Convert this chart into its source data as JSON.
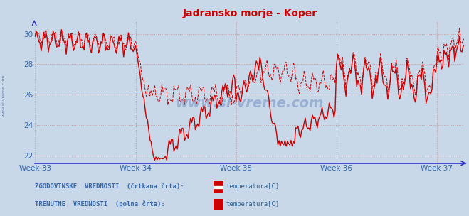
{
  "title": "Jadransko morje - Koper",
  "title_color": "#cc0000",
  "background_color": "#c8d8e8",
  "plot_bg_color": "#c8d8e8",
  "outer_bg_color": "#c8d8e8",
  "x_labels": [
    "Week 33",
    "Week 34",
    "Week 35",
    "Week 36",
    "Week 37"
  ],
  "x_ticks": [
    0,
    84,
    168,
    252,
    336
  ],
  "ylim": [
    21.5,
    30.8
  ],
  "yticks": [
    22,
    24,
    26,
    28,
    30
  ],
  "hgrid_color": "#cc9999",
  "vgrid_color": "#cc9999",
  "axis_color": "#3333cc",
  "tick_color": "#3366aa",
  "line_color": "#cc0000",
  "legend_label_color": "#336699",
  "legend_bold_color": "#3366aa",
  "watermark": "www.si-vreme.com",
  "watermark_color": "#4466aa",
  "n_points": 360,
  "xlim": [
    0,
    359
  ]
}
